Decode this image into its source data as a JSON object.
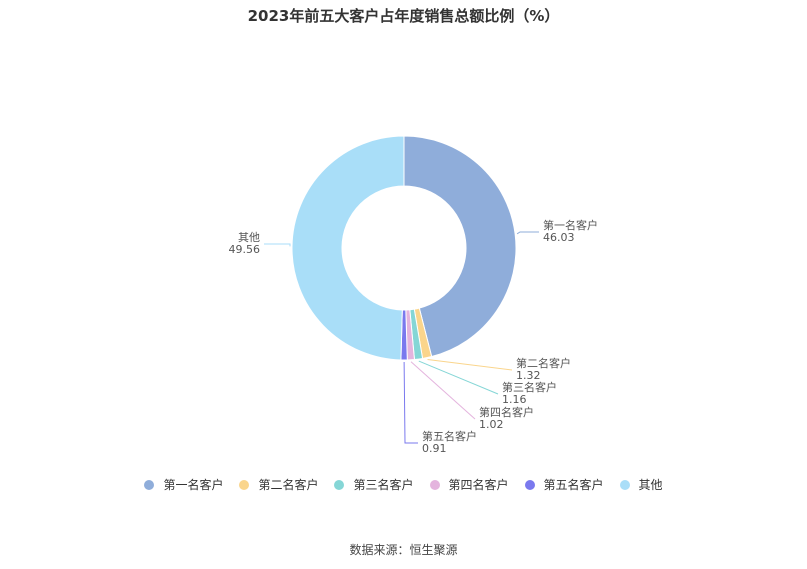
{
  "chart_data": {
    "type": "pie",
    "title": "2023年前五大客户占年度销售总额比例（%）",
    "categories": [
      "第一名客户",
      "第二名客户",
      "第三名客户",
      "第四名客户",
      "第五名客户",
      "其他"
    ],
    "values": [
      46.03,
      1.32,
      1.16,
      1.02,
      0.91,
      49.56
    ],
    "value_labels": [
      "46.03",
      "1.32",
      "1.16",
      "1.02",
      "0.91",
      "49.56"
    ],
    "colors": [
      "#8FADDA",
      "#FAD58C",
      "#85D6D6",
      "#E4B4DE",
      "#7A79EE",
      "#A9DEF8"
    ],
    "legend_position": "bottom",
    "donut": true
  },
  "source": "数据来源：恒生聚源"
}
